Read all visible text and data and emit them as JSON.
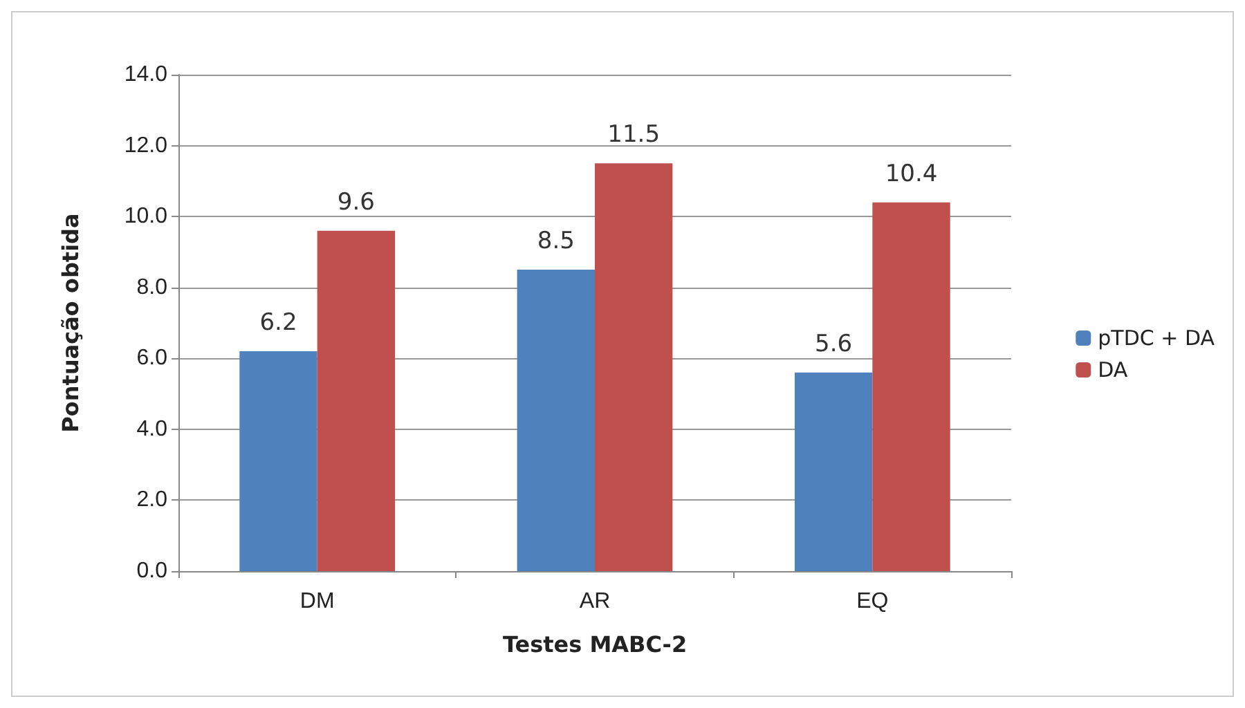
{
  "chart_data": {
    "type": "bar",
    "xlabel": "Testes MABC-2",
    "ylabel": "Pontuação obtida",
    "categories": [
      "DM",
      "AR",
      "EQ"
    ],
    "series": [
      {
        "name": "pTDC + DA",
        "color": "#4f81bd",
        "values": [
          6.2,
          8.5,
          5.6
        ]
      },
      {
        "name": "DA",
        "color": "#c0504d",
        "values": [
          9.6,
          11.5,
          10.4
        ]
      }
    ],
    "ylim": [
      0,
      14
    ],
    "yticks": [
      {
        "value": 0,
        "label": "0.0"
      },
      {
        "value": 2,
        "label": "2.0"
      },
      {
        "value": 4,
        "label": "4.0"
      },
      {
        "value": 6,
        "label": "6.0"
      },
      {
        "value": 8,
        "label": "8.0"
      },
      {
        "value": 10,
        "label": "10.0"
      },
      {
        "value": 12,
        "label": "12.0"
      },
      {
        "value": 14,
        "label": "14.0"
      }
    ],
    "grid": "y",
    "legend": "right",
    "data_labels": true
  }
}
